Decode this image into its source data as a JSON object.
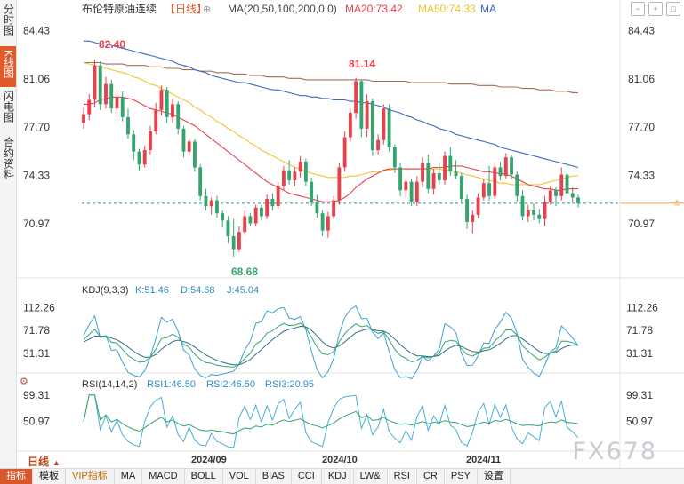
{
  "left_tabs": [
    {
      "label": "分时图",
      "active": false
    },
    {
      "label": "K线图",
      "active": true
    },
    {
      "label": "闪电图",
      "active": false
    },
    {
      "label": "合约资料",
      "active": false
    }
  ],
  "header": {
    "instrument": "布伦特原油连续",
    "period": "【日线】",
    "ma_params": "MA(20,50,100,200,0,0)",
    "ma20": "MA20:73.42",
    "ma50": "MA50:74.33",
    "ma_more": "MA"
  },
  "kdj": {
    "title": "KDJ(9,3,3)",
    "k": "K:51.46",
    "d": "D:54.68",
    "j": "J:45.04"
  },
  "rsi": {
    "title": "RSI(14,14,2)",
    "rsi1": "RSI1:46.50",
    "rsi2": "RSI2:46.50",
    "rsi3": "RSI3:20.95"
  },
  "price_axis": [
    "84.43",
    "81.06",
    "77.70",
    "74.33",
    "70.97"
  ],
  "kdj_axis": [
    "112.26",
    "71.78",
    "31.31"
  ],
  "rsi_axis": [
    "99.31",
    "50.97"
  ],
  "annotations": {
    "high1": "82.40",
    "high2": "81.14",
    "low": "68.68"
  },
  "date_labels": [
    "2024/09",
    "2024/10",
    "2024/11"
  ],
  "daily_tab": "日线",
  "bottom_tabs": [
    "指标",
    "模板",
    "VIP指标",
    "MA",
    "MACD",
    "BOLL",
    "VOL",
    "BIAS",
    "CCI",
    "KDJ",
    "LW&",
    "RSI",
    "CR",
    "PSY",
    "设置"
  ],
  "watermark": "FX678",
  "colors": {
    "up": "#e8414e",
    "down": "#35a46f",
    "ma20": "#e8414e",
    "ma50": "#f2c530",
    "ma100": "#3b69c0",
    "ma200": "#a86d5a",
    "accent": "#d9582b"
  },
  "chart_data": {
    "type": "candlestick",
    "ohlc": [
      {
        "o": 78.0,
        "h": 79.1,
        "l": 77.6,
        "c": 78.6
      },
      {
        "o": 78.6,
        "h": 80.0,
        "l": 78.2,
        "c": 79.6
      },
      {
        "o": 79.6,
        "h": 82.4,
        "l": 79.1,
        "c": 82.0
      },
      {
        "o": 82.0,
        "h": 82.3,
        "l": 78.9,
        "c": 79.3
      },
      {
        "o": 79.3,
        "h": 81.2,
        "l": 79.0,
        "c": 80.7
      },
      {
        "o": 80.7,
        "h": 81.0,
        "l": 78.7,
        "c": 79.0
      },
      {
        "o": 79.0,
        "h": 80.3,
        "l": 78.4,
        "c": 79.8
      },
      {
        "o": 79.8,
        "h": 80.2,
        "l": 78.1,
        "c": 78.4
      },
      {
        "o": 78.4,
        "h": 79.0,
        "l": 76.9,
        "c": 77.2
      },
      {
        "o": 77.2,
        "h": 77.5,
        "l": 75.4,
        "c": 76.0
      },
      {
        "o": 76.0,
        "h": 76.2,
        "l": 74.7,
        "c": 75.1
      },
      {
        "o": 75.1,
        "h": 76.4,
        "l": 74.9,
        "c": 76.1
      },
      {
        "o": 76.1,
        "h": 77.8,
        "l": 75.8,
        "c": 77.4
      },
      {
        "o": 77.4,
        "h": 79.4,
        "l": 77.2,
        "c": 78.9
      },
      {
        "o": 78.9,
        "h": 80.6,
        "l": 78.5,
        "c": 80.3
      },
      {
        "o": 80.3,
        "h": 80.5,
        "l": 78.0,
        "c": 78.4
      },
      {
        "o": 78.4,
        "h": 79.7,
        "l": 78.0,
        "c": 79.3
      },
      {
        "o": 79.3,
        "h": 79.5,
        "l": 77.2,
        "c": 77.6
      },
      {
        "o": 77.6,
        "h": 77.8,
        "l": 75.6,
        "c": 76.0
      },
      {
        "o": 76.0,
        "h": 77.0,
        "l": 75.7,
        "c": 76.7
      },
      {
        "o": 76.7,
        "h": 76.9,
        "l": 74.6,
        "c": 74.9
      },
      {
        "o": 74.9,
        "h": 75.1,
        "l": 72.6,
        "c": 72.9
      },
      {
        "o": 72.9,
        "h": 73.4,
        "l": 71.9,
        "c": 72.2
      },
      {
        "o": 72.2,
        "h": 72.8,
        "l": 71.6,
        "c": 72.6
      },
      {
        "o": 72.6,
        "h": 72.9,
        "l": 71.4,
        "c": 71.7
      },
      {
        "o": 71.7,
        "h": 71.9,
        "l": 70.7,
        "c": 71.2
      },
      {
        "o": 71.2,
        "h": 71.5,
        "l": 69.6,
        "c": 70.1
      },
      {
        "o": 70.1,
        "h": 71.3,
        "l": 68.68,
        "c": 69.2
      },
      {
        "o": 69.2,
        "h": 70.8,
        "l": 69.0,
        "c": 70.4
      },
      {
        "o": 70.4,
        "h": 71.9,
        "l": 70.2,
        "c": 71.5
      },
      {
        "o": 71.5,
        "h": 71.7,
        "l": 70.8,
        "c": 71.0
      },
      {
        "o": 71.0,
        "h": 72.3,
        "l": 70.8,
        "c": 72.1
      },
      {
        "o": 72.1,
        "h": 72.3,
        "l": 71.2,
        "c": 71.5
      },
      {
        "o": 71.5,
        "h": 73.0,
        "l": 71.3,
        "c": 72.7
      },
      {
        "o": 72.7,
        "h": 73.1,
        "l": 71.9,
        "c": 72.2
      },
      {
        "o": 72.2,
        "h": 73.9,
        "l": 72.0,
        "c": 73.6
      },
      {
        "o": 73.6,
        "h": 75.0,
        "l": 73.3,
        "c": 74.7
      },
      {
        "o": 74.7,
        "h": 75.4,
        "l": 73.7,
        "c": 74.0
      },
      {
        "o": 74.0,
        "h": 74.9,
        "l": 73.6,
        "c": 74.6
      },
      {
        "o": 74.6,
        "h": 75.7,
        "l": 74.2,
        "c": 75.3
      },
      {
        "o": 75.3,
        "h": 75.5,
        "l": 73.6,
        "c": 73.9
      },
      {
        "o": 73.9,
        "h": 74.2,
        "l": 72.2,
        "c": 72.5
      },
      {
        "o": 72.5,
        "h": 73.0,
        "l": 71.4,
        "c": 71.7
      },
      {
        "o": 71.7,
        "h": 71.9,
        "l": 70.1,
        "c": 70.5
      },
      {
        "o": 70.5,
        "h": 71.8,
        "l": 70.0,
        "c": 71.5
      },
      {
        "o": 71.5,
        "h": 72.9,
        "l": 71.3,
        "c": 72.6
      },
      {
        "o": 72.6,
        "h": 75.2,
        "l": 72.3,
        "c": 74.9
      },
      {
        "o": 74.9,
        "h": 77.4,
        "l": 74.6,
        "c": 77.0
      },
      {
        "o": 77.0,
        "h": 79.0,
        "l": 76.7,
        "c": 78.7
      },
      {
        "o": 78.7,
        "h": 81.14,
        "l": 78.3,
        "c": 80.9
      },
      {
        "o": 80.9,
        "h": 81.0,
        "l": 77.0,
        "c": 77.6
      },
      {
        "o": 77.6,
        "h": 80.0,
        "l": 77.0,
        "c": 79.5
      },
      {
        "o": 79.5,
        "h": 79.7,
        "l": 75.7,
        "c": 76.1
      },
      {
        "o": 76.1,
        "h": 77.2,
        "l": 75.8,
        "c": 76.8
      },
      {
        "o": 76.8,
        "h": 79.3,
        "l": 76.5,
        "c": 79.0
      },
      {
        "o": 79.0,
        "h": 79.3,
        "l": 76.0,
        "c": 76.3
      },
      {
        "o": 76.3,
        "h": 76.5,
        "l": 74.5,
        "c": 74.9
      },
      {
        "o": 74.9,
        "h": 75.2,
        "l": 72.9,
        "c": 73.3
      },
      {
        "o": 73.3,
        "h": 74.2,
        "l": 72.8,
        "c": 73.9
      },
      {
        "o": 73.9,
        "h": 74.1,
        "l": 72.2,
        "c": 72.5
      },
      {
        "o": 72.5,
        "h": 74.3,
        "l": 72.2,
        "c": 73.9
      },
      {
        "o": 73.9,
        "h": 75.6,
        "l": 73.5,
        "c": 75.2
      },
      {
        "o": 75.2,
        "h": 75.8,
        "l": 73.1,
        "c": 73.4
      },
      {
        "o": 73.4,
        "h": 74.8,
        "l": 73.0,
        "c": 74.5
      },
      {
        "o": 74.5,
        "h": 75.2,
        "l": 73.7,
        "c": 74.0
      },
      {
        "o": 74.0,
        "h": 76.0,
        "l": 73.7,
        "c": 75.7
      },
      {
        "o": 75.7,
        "h": 76.3,
        "l": 74.3,
        "c": 74.6
      },
      {
        "o": 74.6,
        "h": 75.4,
        "l": 74.1,
        "c": 74.3
      },
      {
        "o": 74.3,
        "h": 74.5,
        "l": 72.4,
        "c": 72.7
      },
      {
        "o": 72.7,
        "h": 73.0,
        "l": 70.6,
        "c": 71.1
      },
      {
        "o": 71.1,
        "h": 71.9,
        "l": 70.3,
        "c": 71.6
      },
      {
        "o": 71.6,
        "h": 73.1,
        "l": 71.4,
        "c": 72.8
      },
      {
        "o": 72.8,
        "h": 74.1,
        "l": 72.6,
        "c": 73.8
      },
      {
        "o": 73.8,
        "h": 75.0,
        "l": 72.6,
        "c": 72.9
      },
      {
        "o": 72.9,
        "h": 75.2,
        "l": 72.7,
        "c": 74.9
      },
      {
        "o": 74.9,
        "h": 75.3,
        "l": 74.0,
        "c": 74.3
      },
      {
        "o": 74.3,
        "h": 75.9,
        "l": 74.1,
        "c": 75.6
      },
      {
        "o": 75.6,
        "h": 75.8,
        "l": 74.1,
        "c": 74.4
      },
      {
        "o": 74.4,
        "h": 74.6,
        "l": 72.5,
        "c": 72.9
      },
      {
        "o": 72.9,
        "h": 73.3,
        "l": 71.2,
        "c": 71.5
      },
      {
        "o": 71.5,
        "h": 72.3,
        "l": 71.1,
        "c": 71.9
      },
      {
        "o": 71.9,
        "h": 72.4,
        "l": 71.2,
        "c": 71.6
      },
      {
        "o": 71.6,
        "h": 72.0,
        "l": 71.0,
        "c": 71.3
      },
      {
        "o": 71.3,
        "h": 72.9,
        "l": 70.8,
        "c": 72.5
      },
      {
        "o": 72.5,
        "h": 73.6,
        "l": 72.3,
        "c": 73.3
      },
      {
        "o": 73.3,
        "h": 73.5,
        "l": 72.2,
        "c": 72.9
      },
      {
        "o": 72.9,
        "h": 74.9,
        "l": 72.6,
        "c": 74.4
      },
      {
        "o": 74.4,
        "h": 75.2,
        "l": 72.9,
        "c": 73.1
      },
      {
        "o": 73.1,
        "h": 73.5,
        "l": 72.4,
        "c": 72.8
      },
      {
        "o": 72.8,
        "h": 73.0,
        "l": 72.1,
        "c": 72.4
      }
    ],
    "ma20": [
      79.3,
      79.3,
      79.4,
      79.6,
      79.7,
      79.8,
      79.8,
      79.8,
      79.7,
      79.6,
      79.4,
      79.2,
      79.0,
      78.9,
      78.8,
      78.7,
      78.6,
      78.4,
      78.2,
      78.0,
      77.8,
      77.5,
      77.2,
      76.9,
      76.6,
      76.3,
      76.0,
      75.7,
      75.4,
      75.1,
      74.8,
      74.5,
      74.2,
      73.9,
      73.7,
      73.5,
      73.3,
      73.1,
      73.0,
      72.9,
      72.8,
      72.7,
      72.6,
      72.5,
      72.5,
      72.5,
      72.6,
      72.8,
      73.1,
      73.5,
      73.8,
      74.1,
      74.3,
      74.5,
      74.7,
      74.8,
      74.8,
      74.8,
      74.8,
      74.8,
      74.8,
      74.8,
      74.8,
      74.9,
      74.9,
      74.9,
      75.0,
      75.0,
      75.0,
      74.9,
      74.8,
      74.7,
      74.6,
      74.6,
      74.5,
      74.5,
      74.4,
      74.3,
      74.1,
      73.9,
      73.7,
      73.6,
      73.5,
      73.4,
      73.4,
      73.3,
      73.3,
      73.4,
      73.4,
      73.42
    ],
    "ma50": [
      82.2,
      82.1,
      82.0,
      81.9,
      81.8,
      81.7,
      81.6,
      81.5,
      81.4,
      81.2,
      81.1,
      80.9,
      80.7,
      80.6,
      80.4,
      80.2,
      80.0,
      79.8,
      79.6,
      79.4,
      79.1,
      78.9,
      78.6,
      78.4,
      78.1,
      77.9,
      77.6,
      77.4,
      77.1,
      76.9,
      76.6,
      76.4,
      76.1,
      75.9,
      75.7,
      75.5,
      75.3,
      75.1,
      74.9,
      74.8,
      74.6,
      74.5,
      74.4,
      74.3,
      74.2,
      74.2,
      74.2,
      74.2,
      74.3,
      74.3,
      74.4,
      74.5,
      74.6,
      74.6,
      74.7,
      74.7,
      74.8,
      74.8,
      74.8,
      74.8,
      74.8,
      74.8,
      74.8,
      74.8,
      74.8,
      74.7,
      74.7,
      74.6,
      74.5,
      74.4,
      74.3,
      74.2,
      74.1,
      74.0,
      73.9,
      73.8,
      73.8,
      73.7,
      73.7,
      73.7,
      73.7,
      73.7,
      73.7,
      73.8,
      73.9,
      74.0,
      74.1,
      74.2,
      74.3,
      74.33
    ],
    "ma100": [
      83.7,
      83.7,
      83.6,
      83.5,
      83.5,
      83.4,
      83.3,
      83.2,
      83.1,
      83.0,
      82.9,
      82.8,
      82.7,
      82.6,
      82.5,
      82.4,
      82.3,
      82.1,
      82.0,
      81.9,
      81.7,
      81.6,
      81.5,
      81.3,
      81.2,
      81.1,
      81.0,
      80.9,
      80.8,
      80.8,
      80.7,
      80.6,
      80.5,
      80.4,
      80.3,
      80.3,
      80.2,
      80.1,
      80.0,
      79.9,
      79.9,
      79.8,
      79.8,
      79.7,
      79.7,
      79.6,
      79.6,
      79.6,
      79.5,
      79.5,
      79.4,
      79.4,
      79.3,
      79.2,
      79.1,
      78.9,
      78.8,
      78.7,
      78.5,
      78.4,
      78.2,
      78.1,
      77.9,
      77.8,
      77.6,
      77.5,
      77.4,
      77.2,
      77.1,
      77.0,
      76.9,
      76.8,
      76.7,
      76.6,
      76.5,
      76.3,
      76.2,
      76.1,
      76.0,
      75.9,
      75.8,
      75.7,
      75.6,
      75.5,
      75.4,
      75.3,
      75.2,
      75.1,
      75.0,
      74.9
    ],
    "ma200": [
      82.2,
      82.2,
      82.2,
      82.2,
      82.1,
      82.1,
      82.1,
      82.1,
      82.0,
      82.0,
      82.0,
      82.0,
      81.9,
      81.9,
      81.9,
      81.8,
      81.8,
      81.8,
      81.7,
      81.7,
      81.7,
      81.6,
      81.6,
      81.6,
      81.5,
      81.5,
      81.5,
      81.4,
      81.4,
      81.4,
      81.3,
      81.3,
      81.3,
      81.2,
      81.2,
      81.2,
      81.2,
      81.1,
      81.1,
      81.1,
      81.0,
      81.0,
      81.0,
      81.0,
      81.0,
      81.0,
      81.0,
      81.0,
      81.0,
      81.0,
      81.0,
      81.0,
      80.9,
      80.9,
      80.9,
      80.9,
      80.9,
      80.9,
      80.9,
      80.8,
      80.8,
      80.8,
      80.8,
      80.8,
      80.8,
      80.8,
      80.7,
      80.7,
      80.7,
      80.7,
      80.7,
      80.6,
      80.6,
      80.6,
      80.6,
      80.5,
      80.5,
      80.5,
      80.5,
      80.4,
      80.4,
      80.4,
      80.3,
      80.3,
      80.3,
      80.2,
      80.2,
      80.2,
      80.1,
      80.1
    ],
    "last_price": 72.4,
    "price_range": [
      68.0,
      85.2
    ],
    "kdj_range": [
      0,
      130
    ],
    "rsi_range": [
      0,
      108
    ]
  }
}
